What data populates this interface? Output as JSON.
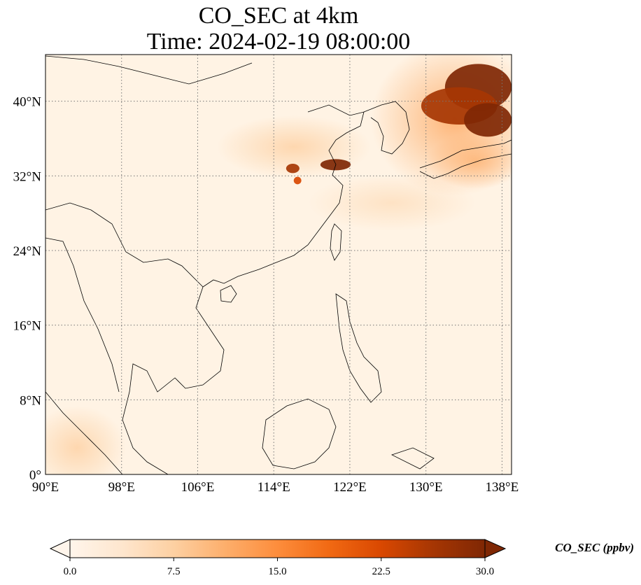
{
  "title": "CO_SEC at 4km",
  "subtitle": "Time: 2024-02-19 08:00:00",
  "map": {
    "lon_range": [
      90,
      139
    ],
    "lat_range": [
      0,
      45
    ],
    "lon_ticks": [
      "90°E",
      "98°E",
      "106°E",
      "114°E",
      "122°E",
      "130°E",
      "138°E"
    ],
    "lon_tick_values": [
      90,
      98,
      106,
      114,
      122,
      130,
      138
    ],
    "lat_ticks": [
      "0°",
      "8°N",
      "16°N",
      "24°N",
      "32°N",
      "40°N"
    ],
    "lat_tick_values": [
      0,
      8,
      16,
      24,
      32,
      40
    ],
    "gridlines": "dotted",
    "plumes": [
      {
        "lon": 135.5,
        "lat": 41.5,
        "rx": 3.5,
        "ry": 2.5,
        "value": 30
      },
      {
        "lon": 133.5,
        "lat": 39.5,
        "rx": 4.0,
        "ry": 2.0,
        "value": 28
      },
      {
        "lon": 136.5,
        "lat": 38.0,
        "rx": 2.5,
        "ry": 1.8,
        "value": 29
      },
      {
        "lon": 116.0,
        "lat": 32.8,
        "rx": 0.7,
        "ry": 0.5,
        "value": 28
      },
      {
        "lon": 120.5,
        "lat": 33.2,
        "rx": 1.6,
        "ry": 0.6,
        "value": 29
      },
      {
        "lon": 116.5,
        "lat": 31.5,
        "rx": 0.4,
        "ry": 0.4,
        "value": 24
      }
    ]
  },
  "colorbar": {
    "label": "CO_SEC (ppbv)",
    "ticks": [
      "0.0",
      "7.5",
      "15.0",
      "22.5",
      "30.0"
    ],
    "tick_values": [
      0,
      7.5,
      15,
      22.5,
      30
    ],
    "range": [
      0,
      30
    ],
    "colors": [
      "#fff5eb",
      "#fee6ce",
      "#fdd0a2",
      "#fdae6b",
      "#fd8d3c",
      "#f16913",
      "#d94801",
      "#a63603",
      "#7f2704"
    ],
    "extend": "both"
  }
}
